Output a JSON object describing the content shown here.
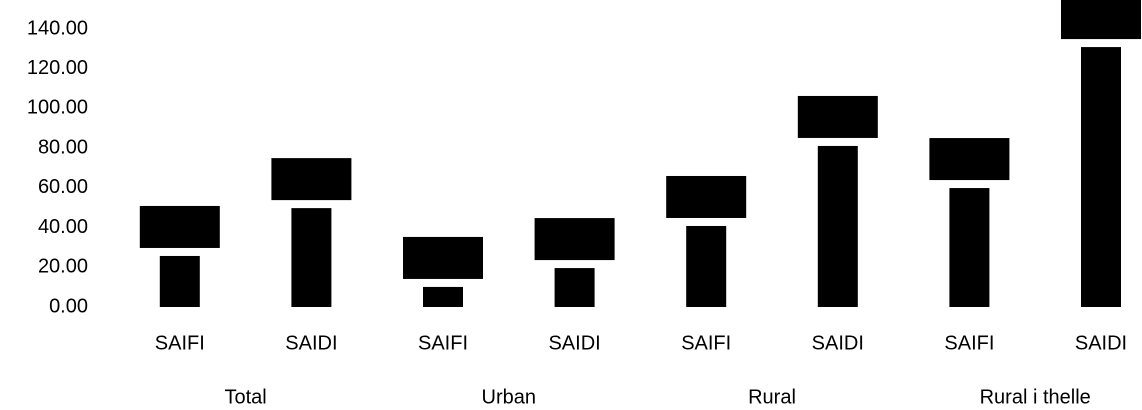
{
  "chart_data": {
    "type": "bar",
    "groups": [
      "Total",
      "Urban",
      "Rural",
      "Rural i thelle"
    ],
    "categories": [
      "SAIFI",
      "SAIDI",
      "SAIFI",
      "SAIDI",
      "SAIFI",
      "SAIDI",
      "SAIFI",
      "SAIDI"
    ],
    "values": [
      25.7,
      49.8,
      10.1,
      19.6,
      40.8,
      81.1,
      59.9,
      130.9
    ],
    "color": "#000000",
    "ylim": [
      0,
      140
    ],
    "yticks": [
      {
        "value": 0,
        "label": "0.00"
      },
      {
        "value": 20,
        "label": "20.00"
      },
      {
        "value": 40,
        "label": "40.00"
      },
      {
        "value": 60,
        "label": "60.00"
      },
      {
        "value": 80,
        "label": "80.00"
      },
      {
        "value": 100,
        "label": "100.00"
      },
      {
        "value": 120,
        "label": "120.00"
      },
      {
        "value": 140,
        "label": "140.00"
      }
    ],
    "grid": false
  }
}
